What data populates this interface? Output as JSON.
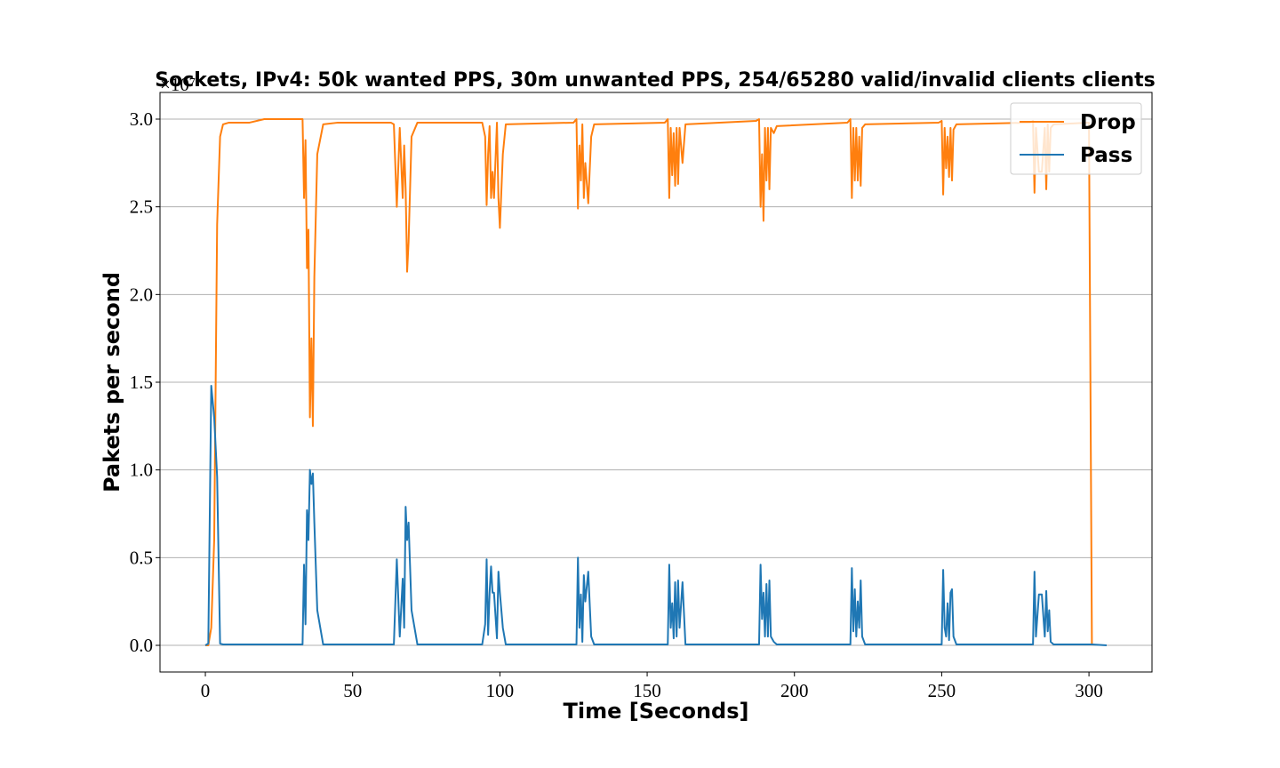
{
  "chart_data": {
    "type": "line",
    "title": "Sockets, IPv4: 50k wanted PPS, 30m unwanted PPS, 254/65280 valid/invalid clients clients",
    "x_label": "Time [Seconds]",
    "y_label": "Pakets per second",
    "y_multiplier": "×10⁷",
    "xlim": [
      -15.4,
      321.4
    ],
    "ylim": [
      -0.152,
      3.152
    ],
    "xticks": [
      0,
      50,
      100,
      150,
      200,
      250,
      300
    ],
    "yticks": [
      {
        "value": 0,
        "label": "0.0"
      },
      0.5,
      {
        "value": 1,
        "label": "1.0"
      },
      1.5,
      {
        "value": 2,
        "label": "2.0"
      },
      2.5,
      {
        "value": 3,
        "label": "3.0"
      }
    ],
    "grid": "y",
    "legend": "upper right",
    "x": [
      0,
      1,
      2,
      3,
      4,
      5,
      6,
      8,
      15,
      20,
      25,
      33,
      33.5,
      34,
      34.5,
      35,
      35.5,
      36,
      36.5,
      37,
      38,
      40,
      45,
      63,
      64,
      65,
      66,
      67,
      67.5,
      68,
      68.5,
      69,
      70,
      72,
      94,
      95,
      95.5,
      96,
      96.5,
      97,
      97.5,
      98,
      99,
      99.5,
      100,
      101,
      102,
      125,
      126,
      126.5,
      127,
      127.5,
      128,
      128.5,
      129,
      130,
      131,
      132,
      156,
      157,
      157.5,
      158,
      158.5,
      159,
      159.5,
      160,
      160.5,
      161,
      162,
      163,
      187,
      188,
      188.5,
      189,
      189.5,
      190,
      190.5,
      191,
      191.5,
      192,
      193,
      194,
      218,
      219,
      219.5,
      220,
      220.5,
      221,
      221.5,
      222,
      222.5,
      223,
      224,
      249,
      250,
      250.5,
      251,
      251.5,
      252,
      252.5,
      253,
      253.5,
      254,
      255,
      280,
      281,
      281.5,
      282,
      283,
      284,
      285,
      285.5,
      286,
      286.5,
      287,
      288,
      300,
      301,
      306
    ],
    "series": [
      {
        "name": "Drop",
        "color": "#ff7f0e",
        "values": [
          0,
          0,
          0.1,
          0.6,
          2.4,
          2.9,
          2.97,
          2.98,
          2.98,
          3.0,
          3.0,
          3.0,
          2.55,
          2.88,
          2.15,
          2.37,
          1.3,
          1.75,
          1.25,
          2.1,
          2.8,
          2.97,
          2.98,
          2.98,
          2.97,
          2.5,
          2.95,
          2.55,
          2.85,
          2.6,
          2.13,
          2.3,
          2.9,
          2.98,
          2.98,
          2.9,
          2.51,
          2.8,
          2.96,
          2.55,
          2.7,
          2.55,
          2.98,
          2.55,
          2.38,
          2.8,
          2.97,
          2.98,
          3.0,
          2.49,
          2.85,
          2.65,
          2.97,
          2.55,
          2.75,
          2.52,
          2.9,
          2.97,
          2.98,
          3.0,
          2.55,
          2.95,
          2.68,
          2.92,
          2.62,
          2.95,
          2.63,
          2.95,
          2.75,
          2.97,
          2.99,
          3.0,
          2.5,
          2.8,
          2.42,
          2.95,
          2.65,
          2.95,
          2.6,
          2.95,
          2.92,
          2.96,
          2.98,
          3.0,
          2.55,
          2.95,
          2.65,
          2.95,
          2.65,
          2.9,
          2.62,
          2.95,
          2.97,
          2.98,
          2.99,
          2.57,
          2.95,
          2.72,
          2.9,
          2.67,
          2.95,
          2.65,
          2.94,
          2.97,
          2.98,
          2.99,
          2.58,
          2.95,
          2.7,
          2.7,
          2.95,
          2.6,
          2.97,
          2.7,
          2.95,
          2.97,
          2.98,
          0,
          null
        ]
      },
      {
        "name": "Pass",
        "color": "#1f77b4",
        "values": [
          0,
          0.01,
          1.48,
          1.3,
          0.96,
          0.01,
          0.005,
          0.005,
          0.005,
          0.005,
          0.005,
          0.005,
          0.46,
          0.12,
          0.77,
          0.6,
          1.0,
          0.92,
          0.98,
          0.7,
          0.2,
          0.005,
          0.005,
          0.005,
          0.005,
          0.49,
          0.05,
          0.38,
          0.1,
          0.79,
          0.6,
          0.7,
          0.2,
          0.005,
          0.005,
          0.12,
          0.49,
          0.06,
          0.3,
          0.45,
          0.3,
          0.3,
          0.04,
          0.42,
          0.3,
          0.1,
          0.005,
          0.005,
          0.005,
          0.5,
          0.1,
          0.29,
          0.02,
          0.4,
          0.25,
          0.42,
          0.05,
          0.005,
          0.005,
          0.005,
          0.46,
          0.1,
          0.24,
          0.04,
          0.36,
          0.05,
          0.37,
          0.1,
          0.36,
          0.005,
          0.005,
          0.005,
          0.46,
          0.15,
          0.3,
          0.05,
          0.35,
          0.05,
          0.37,
          0.05,
          0.02,
          0.005,
          0.005,
          0.005,
          0.44,
          0.08,
          0.32,
          0.05,
          0.25,
          0.1,
          0.37,
          0.05,
          0.005,
          0.005,
          0.005,
          0.43,
          0.1,
          0.05,
          0.24,
          0.03,
          0.3,
          0.32,
          0.05,
          0.005,
          0.005,
          0.005,
          0.42,
          0.05,
          0.29,
          0.29,
          0.05,
          0.31,
          0.08,
          0.2,
          0.02,
          0.005,
          0.005,
          0.005,
          0
        ]
      }
    ]
  }
}
